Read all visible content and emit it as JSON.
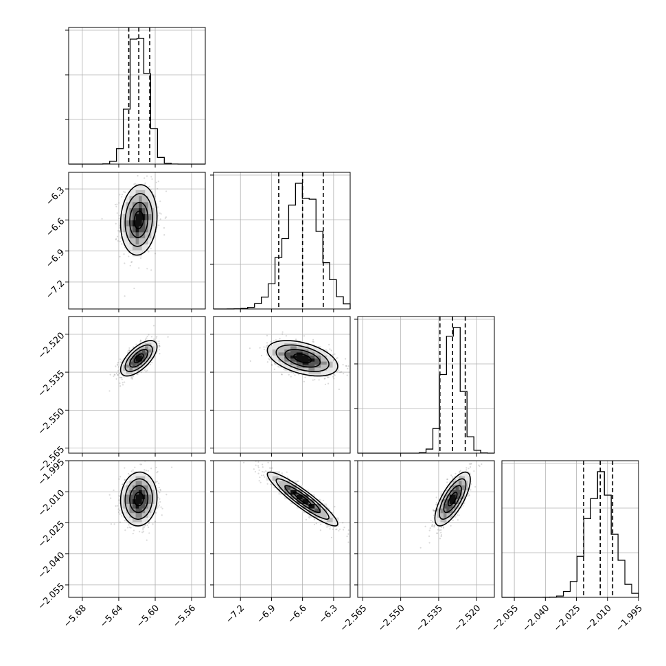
{
  "chart_data": {
    "type": "corner",
    "n_params": 4,
    "grid": true,
    "params": [
      {
        "range": [
          -5.695,
          -5.545
        ],
        "ticks": [
          -5.68,
          -5.64,
          -5.6,
          -5.56
        ],
        "tick_labels": [
          "−5.68",
          "−5.64",
          "−5.60",
          "−5.56"
        ],
        "center": -5.618,
        "std": 0.01,
        "quantiles": [
          -5.629,
          -5.618,
          -5.606
        ]
      },
      {
        "range": [
          -7.46,
          -6.14
        ],
        "ticks": [
          -7.2,
          -6.9,
          -6.6,
          -6.3
        ],
        "tick_labels": [
          "−7.2",
          "−6.9",
          "−6.6",
          "−6.3"
        ],
        "center": -6.6,
        "std": 0.17,
        "quantiles": [
          -6.83,
          -6.6,
          -6.4
        ]
      },
      {
        "range": [
          -2.567,
          -2.513
        ],
        "ticks": [
          -2.565,
          -2.55,
          -2.535,
          -2.52
        ],
        "tick_labels": [
          "−2.565",
          "−2.550",
          "−2.535",
          "−2.520"
        ],
        "center": -2.5295,
        "std": 0.0035,
        "quantiles": [
          -2.5345,
          -2.5295,
          -2.5245
        ]
      },
      {
        "range": [
          -2.061,
          -1.995
        ],
        "ticks": [
          -2.055,
          -2.04,
          -2.025,
          -2.01,
          -1.995
        ],
        "tick_labels": [
          "−2.055",
          "−2.040",
          "−2.025",
          "−2.010",
          "−1.995"
        ],
        "center": -2.0135,
        "std": 0.0065,
        "quantiles": [
          -2.0215,
          -2.0135,
          -2.0075
        ]
      }
    ],
    "correlations": [
      {
        "i": 1,
        "j": 0,
        "rho": 0.1
      },
      {
        "i": 2,
        "j": 0,
        "rho": 0.65
      },
      {
        "i": 2,
        "j": 1,
        "rho": -0.45
      },
      {
        "i": 3,
        "j": 0,
        "rho": 0.05
      },
      {
        "i": 3,
        "j": 1,
        "rho": -0.92
      },
      {
        "i": 3,
        "j": 2,
        "rho": 0.72
      }
    ],
    "contour_levels": [
      0.5,
      1.0,
      1.5,
      2.0
    ],
    "hist_bins": 20,
    "quantile_line_style": "dashed",
    "colors": {
      "points": "#555555",
      "lines": "#000000",
      "grid": "#b0b0b0"
    }
  }
}
